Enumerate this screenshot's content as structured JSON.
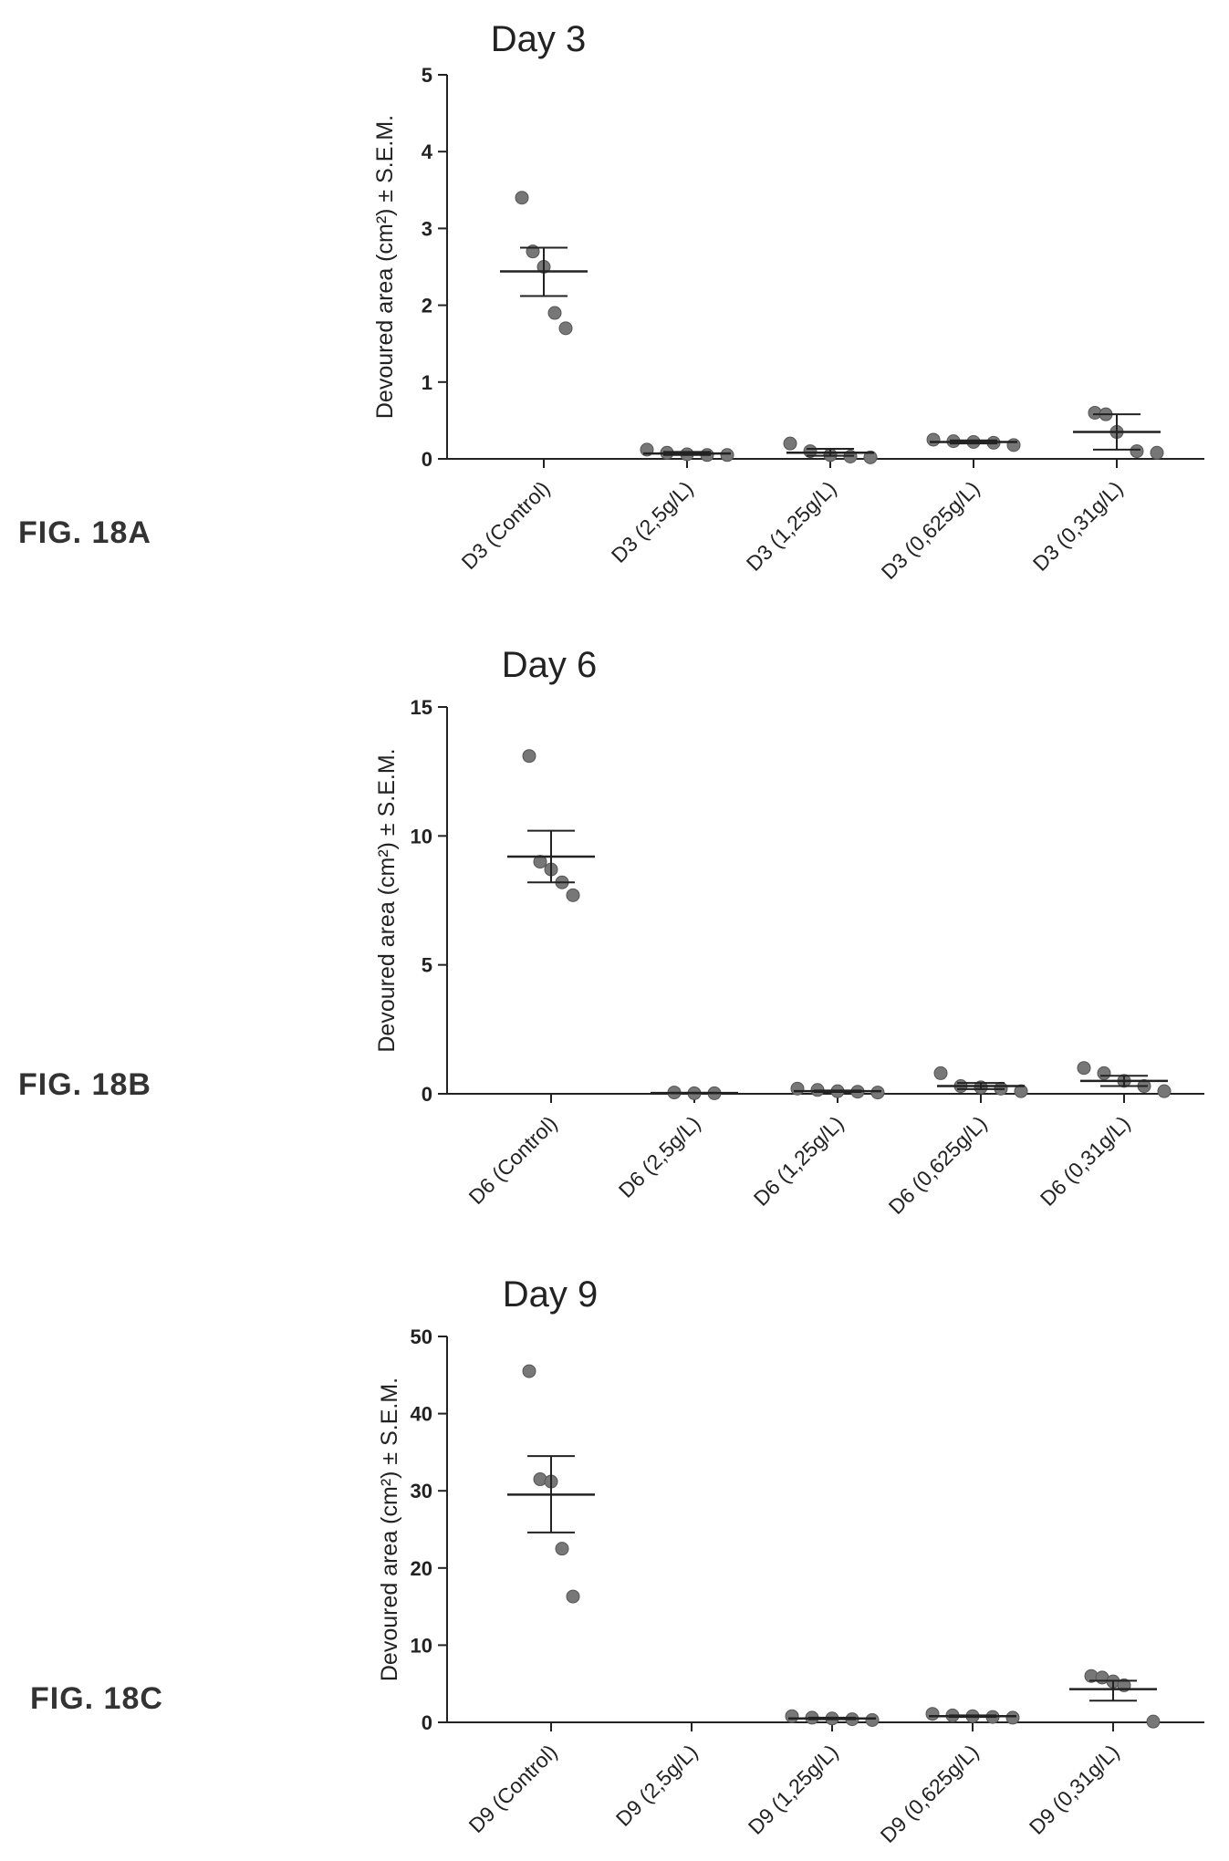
{
  "figures": [
    {
      "label": "FIG. 18A"
    },
    {
      "label": "FIG. 18B"
    },
    {
      "label": "FIG. 18C"
    }
  ],
  "colors": {
    "points": "#777777",
    "axes": "#222222",
    "text": "#222222"
  },
  "chart_data": [
    {
      "type": "scatter",
      "title": "Day 3",
      "ylabel": "Devoured area (cm²) ± S.E.M.",
      "xlabel": "",
      "ylim": [
        0,
        5
      ],
      "yticks": [
        0,
        1,
        2,
        3,
        4,
        5
      ],
      "categories": [
        "D3 (Control)",
        "D3 (2,5g/L)",
        "D3 (1,25g/L)",
        "D3 (0,625g/L)",
        "D3 (0,31g/L)"
      ],
      "series": [
        {
          "category": "D3 (Control)",
          "points": [
            3.4,
            2.7,
            2.5,
            1.9,
            1.7
          ],
          "mean": 2.44,
          "sem": [
            2.12,
            2.75
          ]
        },
        {
          "category": "D3 (2,5g/L)",
          "points": [
            0.12,
            0.08,
            0.06,
            0.05,
            0.05
          ],
          "mean": 0.07,
          "sem": [
            0.05,
            0.09
          ]
        },
        {
          "category": "D3 (1,25g/L)",
          "points": [
            0.2,
            0.1,
            0.05,
            0.03,
            0.02
          ],
          "mean": 0.08,
          "sem": [
            0.04,
            0.13
          ]
        },
        {
          "category": "D3 (0,625g/L)",
          "points": [
            0.25,
            0.23,
            0.22,
            0.21,
            0.18
          ],
          "mean": 0.22,
          "sem": [
            0.2,
            0.24
          ]
        },
        {
          "category": "D3 (0,31g/L)",
          "points": [
            0.6,
            0.58,
            0.35,
            0.1,
            0.08
          ],
          "mean": 0.35,
          "sem": [
            0.12,
            0.58
          ]
        }
      ]
    },
    {
      "type": "scatter",
      "title": "Day 6",
      "ylabel": "Devoured area (cm²) ± S.E.M.",
      "xlabel": "",
      "ylim": [
        0,
        15
      ],
      "yticks": [
        0,
        5,
        10,
        15
      ],
      "categories": [
        "D6 (Control)",
        "D6 (2,5g/L)",
        "D6 (1,25g/L)",
        "D6 (0,625g/L)",
        "D6 (0,31g/L)"
      ],
      "series": [
        {
          "category": "D6 (Control)",
          "points": [
            13.1,
            9.0,
            8.7,
            8.2,
            7.7
          ],
          "mean": 9.2,
          "sem": [
            8.2,
            10.2
          ]
        },
        {
          "category": "D6 (2,5g/L)",
          "points": [
            0.05,
            0.02,
            0.02
          ],
          "mean": 0.03,
          "sem": [
            0.02,
            0.04
          ]
        },
        {
          "category": "D6 (1,25g/L)",
          "points": [
            0.2,
            0.15,
            0.1,
            0.08,
            0.05
          ],
          "mean": 0.1,
          "sem": [
            0.07,
            0.13
          ]
        },
        {
          "category": "D6 (0,625g/L)",
          "points": [
            0.8,
            0.3,
            0.25,
            0.2,
            0.1
          ],
          "mean": 0.3,
          "sem": [
            0.18,
            0.42
          ]
        },
        {
          "category": "D6 (0,31g/L)",
          "points": [
            1.0,
            0.8,
            0.5,
            0.3,
            0.1
          ],
          "mean": 0.5,
          "sem": [
            0.3,
            0.7
          ]
        }
      ]
    },
    {
      "type": "scatter",
      "title": "Day 9",
      "ylabel": "Devoured area (cm²) ± S.E.M.",
      "xlabel": "",
      "ylim": [
        0,
        50
      ],
      "yticks": [
        0,
        10,
        20,
        30,
        40,
        50
      ],
      "categories": [
        "D9 (Control)",
        "D9 (2,5g/L)",
        "D9 (1,25g/L)",
        "D9 (0,625g/L)",
        "D9 (0,31g/L)"
      ],
      "series": [
        {
          "category": "D9 (Control)",
          "points": [
            45.5,
            31.5,
            31.2,
            22.5,
            16.3
          ],
          "mean": 29.5,
          "sem": [
            24.6,
            34.5
          ]
        },
        {
          "category": "D9 (2,5g/L)",
          "points": [],
          "mean": null,
          "sem": null
        },
        {
          "category": "D9 (1,25g/L)",
          "points": [
            0.8,
            0.6,
            0.5,
            0.4,
            0.3
          ],
          "mean": 0.5,
          "sem": [
            0.4,
            0.6
          ]
        },
        {
          "category": "D9 (0,625g/L)",
          "points": [
            1.1,
            0.9,
            0.8,
            0.7,
            0.6
          ],
          "mean": 0.8,
          "sem": [
            0.7,
            0.9
          ]
        },
        {
          "category": "D9 (0,31g/L)",
          "points": [
            6.0,
            5.8,
            5.3,
            4.8,
            0.1
          ],
          "mean": 4.3,
          "sem": [
            2.8,
            5.4
          ]
        }
      ]
    }
  ]
}
